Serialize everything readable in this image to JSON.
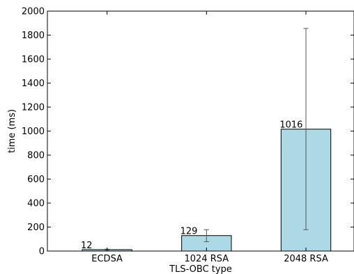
{
  "chart_data": {
    "type": "bar",
    "title": "",
    "xlabel": "TLS-OBC type",
    "ylabel": "time (ms)",
    "categories": [
      "ECDSA",
      "1024 RSA",
      "2048 RSA"
    ],
    "values": [
      12,
      129,
      1016
    ],
    "data_labels": [
      "12",
      "129",
      "1016"
    ],
    "error_bars": [
      {
        "low": 8,
        "high": 16
      },
      {
        "low": 78,
        "high": 178
      },
      {
        "low": 178,
        "high": 1856
      }
    ],
    "ylim": [
      0,
      2000
    ],
    "yticks": [
      0,
      200,
      400,
      600,
      800,
      1000,
      1200,
      1400,
      1600,
      1800,
      2000
    ],
    "bar_color": "#add8e6",
    "edge_color": "#000000",
    "grid": false,
    "legend": "none"
  }
}
